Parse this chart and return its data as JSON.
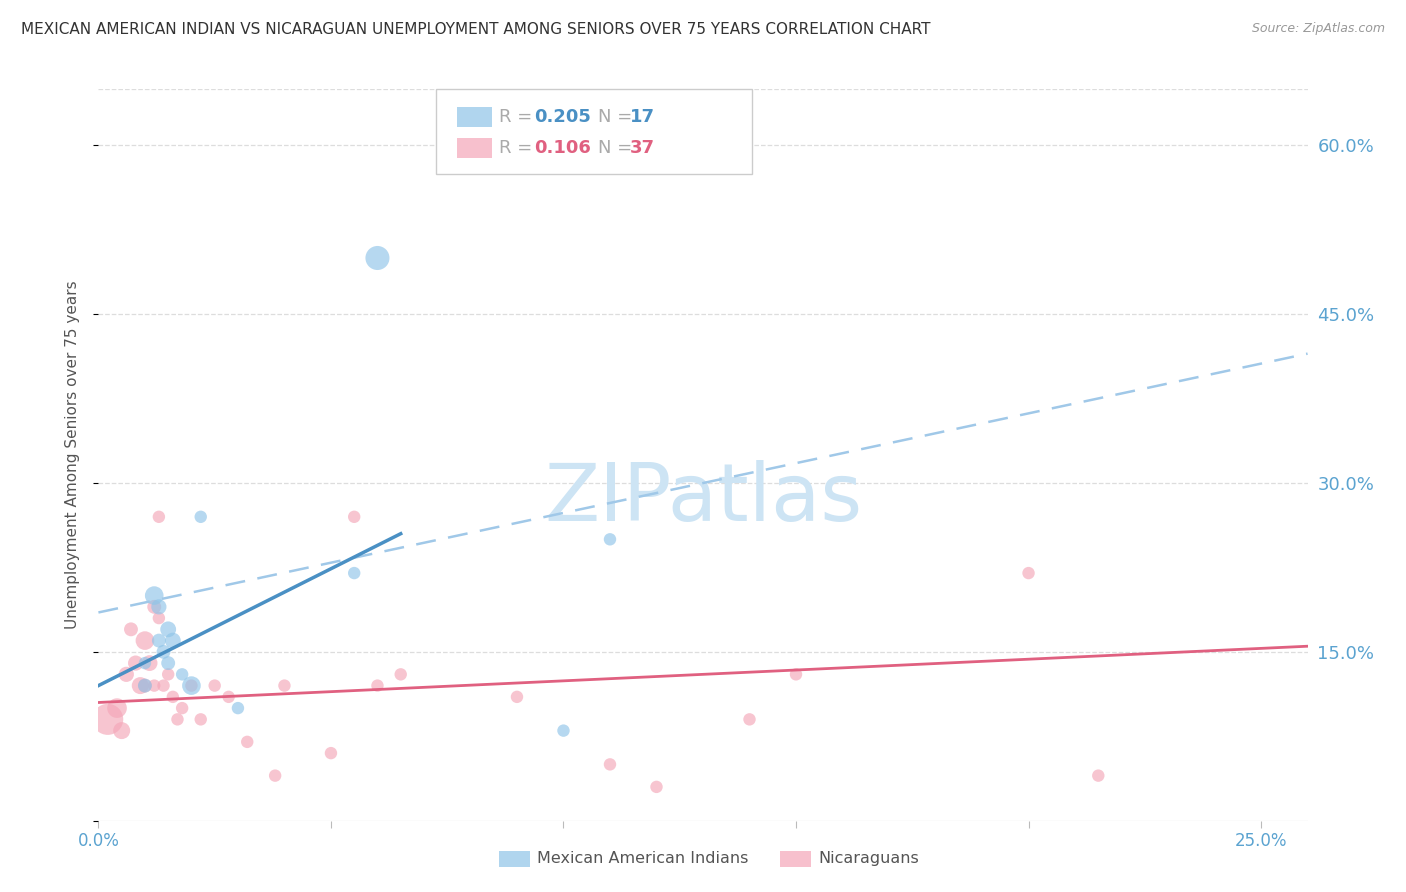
{
  "title": "MEXICAN AMERICAN INDIAN VS NICARAGUAN UNEMPLOYMENT AMONG SENIORS OVER 75 YEARS CORRELATION CHART",
  "source": "Source: ZipAtlas.com",
  "ylabel": "Unemployment Among Seniors over 75 years",
  "xlim": [
    0.0,
    0.26
  ],
  "ylim": [
    0.0,
    0.65
  ],
  "ytick_values": [
    0.0,
    0.15,
    0.3,
    0.45,
    0.6
  ],
  "ytick_labels": [
    "",
    "15.0%",
    "30.0%",
    "45.0%",
    "60.0%"
  ],
  "xtick_values": [
    0.0,
    0.05,
    0.1,
    0.15,
    0.2,
    0.25
  ],
  "xtick_labels": [
    "0.0%",
    "",
    "",
    "",
    "",
    "25.0%"
  ],
  "color_blue": "#8fc4e8",
  "color_pink": "#f4a6b8",
  "color_blue_line": "#4a90c4",
  "color_pink_line": "#e06080",
  "color_dashed": "#a0c8e8",
  "color_right_axis": "#5ba3d0",
  "color_bottom_axis": "#5ba3d0",
  "blue_x": [
    0.01,
    0.01,
    0.012,
    0.013,
    0.013,
    0.014,
    0.015,
    0.015,
    0.016,
    0.018,
    0.02,
    0.022,
    0.03,
    0.055,
    0.06,
    0.1,
    0.11
  ],
  "blue_y": [
    0.12,
    0.14,
    0.2,
    0.19,
    0.16,
    0.15,
    0.17,
    0.14,
    0.16,
    0.13,
    0.12,
    0.27,
    0.1,
    0.22,
    0.5,
    0.08,
    0.25
  ],
  "blue_size": [
    100,
    80,
    180,
    120,
    100,
    100,
    130,
    100,
    130,
    80,
    180,
    80,
    80,
    80,
    300,
    80,
    80
  ],
  "pink_x": [
    0.002,
    0.004,
    0.005,
    0.006,
    0.007,
    0.008,
    0.009,
    0.01,
    0.01,
    0.011,
    0.012,
    0.012,
    0.013,
    0.013,
    0.014,
    0.015,
    0.016,
    0.017,
    0.018,
    0.02,
    0.022,
    0.025,
    0.028,
    0.032,
    0.038,
    0.04,
    0.05,
    0.055,
    0.06,
    0.065,
    0.09,
    0.11,
    0.12,
    0.14,
    0.15,
    0.2,
    0.215
  ],
  "pink_y": [
    0.09,
    0.1,
    0.08,
    0.13,
    0.17,
    0.14,
    0.12,
    0.16,
    0.12,
    0.14,
    0.19,
    0.12,
    0.27,
    0.18,
    0.12,
    0.13,
    0.11,
    0.09,
    0.1,
    0.12,
    0.09,
    0.12,
    0.11,
    0.07,
    0.04,
    0.12,
    0.06,
    0.27,
    0.12,
    0.13,
    0.11,
    0.05,
    0.03,
    0.09,
    0.13,
    0.22,
    0.04
  ],
  "pink_size": [
    500,
    200,
    150,
    120,
    100,
    120,
    150,
    180,
    100,
    130,
    100,
    80,
    80,
    80,
    80,
    80,
    80,
    80,
    80,
    80,
    80,
    80,
    80,
    80,
    80,
    80,
    80,
    80,
    80,
    80,
    80,
    80,
    80,
    80,
    80,
    80,
    80
  ],
  "blue_line_x0": 0.0,
  "blue_line_y0": 0.12,
  "blue_line_x1": 0.065,
  "blue_line_y1": 0.255,
  "pink_line_x0": 0.0,
  "pink_line_y0": 0.105,
  "pink_line_x1": 0.26,
  "pink_line_y1": 0.155,
  "dash_line_x0": 0.0,
  "dash_line_y0": 0.185,
  "dash_line_x1": 0.26,
  "dash_line_y1": 0.415,
  "watermark": "ZIPatlas",
  "watermark_color": "#cde4f4",
  "watermark_fontsize": 58
}
